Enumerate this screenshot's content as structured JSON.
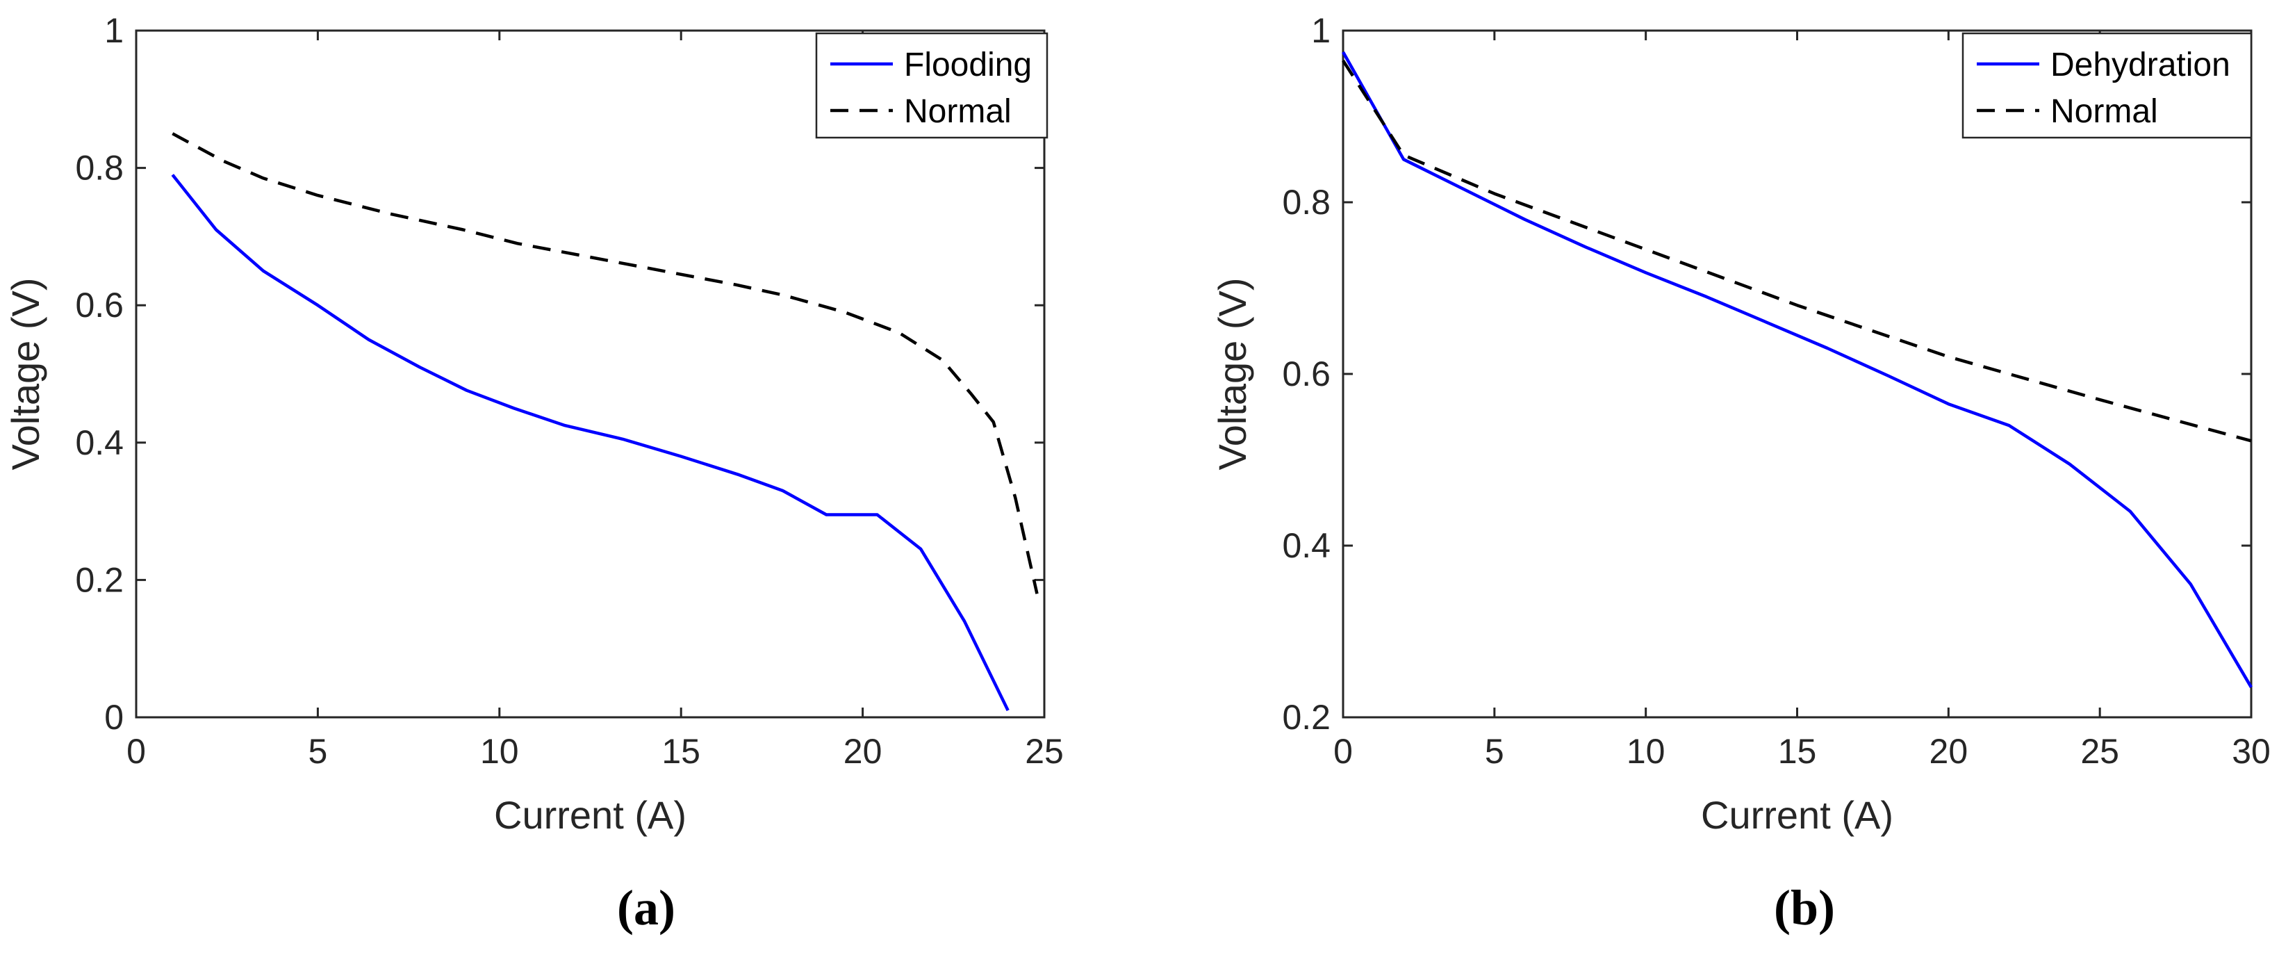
{
  "chart_data": [
    {
      "type": "line",
      "panel_label": "(a)",
      "xlabel": "Current (A)",
      "ylabel": "Voltage (V)",
      "xlim": [
        0,
        25
      ],
      "ylim": [
        0,
        1
      ],
      "xticks": [
        "0",
        "5",
        "10",
        "15",
        "20",
        "25"
      ],
      "yticks": [
        "0",
        "0.2",
        "0.4",
        "0.6",
        "0.8",
        "1"
      ],
      "legend_position": "top-right",
      "series": [
        {
          "name": "Flooding",
          "color": "#0000ff",
          "style": "solid",
          "x": [
            1.0,
            2.2,
            3.5,
            5.0,
            6.4,
            7.8,
            9.1,
            10.4,
            11.8,
            13.4,
            15.0,
            16.6,
            17.8,
            19.0,
            20.4,
            21.6,
            22.8,
            24.0
          ],
          "y": [
            0.79,
            0.71,
            0.65,
            0.6,
            0.55,
            0.51,
            0.476,
            0.45,
            0.425,
            0.405,
            0.38,
            0.353,
            0.33,
            0.295,
            0.295,
            0.245,
            0.14,
            0.01
          ]
        },
        {
          "name": "Normal",
          "color": "#000000",
          "style": "dashed",
          "x": [
            1.0,
            2.4,
            3.5,
            5.0,
            7.0,
            9.0,
            10.5,
            12.5,
            14.5,
            16.5,
            17.8,
            19.5,
            21.0,
            22.2,
            23.0,
            23.6,
            24.2,
            24.8
          ],
          "y": [
            0.85,
            0.81,
            0.785,
            0.76,
            0.733,
            0.71,
            0.69,
            0.67,
            0.65,
            0.63,
            0.615,
            0.59,
            0.56,
            0.52,
            0.47,
            0.43,
            0.32,
            0.18
          ]
        }
      ]
    },
    {
      "type": "line",
      "panel_label": "(b)",
      "xlabel": "Current (A)",
      "ylabel": "Voltage (V)",
      "xlim": [
        0,
        30
      ],
      "ylim": [
        0.2,
        1
      ],
      "xticks": [
        "0",
        "5",
        "10",
        "15",
        "20",
        "25",
        "30"
      ],
      "yticks": [
        "0.2",
        "0.4",
        "0.6",
        "0.8",
        "1"
      ],
      "legend_position": "top-right",
      "series": [
        {
          "name": "Dehydration",
          "color": "#0000ff",
          "style": "solid",
          "x": [
            0,
            2,
            4,
            6,
            8,
            10,
            12,
            14,
            16,
            18,
            20,
            22,
            24,
            26,
            28,
            30
          ],
          "y": [
            0.975,
            0.85,
            0.815,
            0.78,
            0.748,
            0.718,
            0.69,
            0.66,
            0.63,
            0.598,
            0.565,
            0.54,
            0.495,
            0.44,
            0.355,
            0.235
          ]
        },
        {
          "name": "Normal",
          "color": "#000000",
          "style": "dashed",
          "x": [
            0,
            2,
            5,
            10,
            15,
            20,
            25,
            30
          ],
          "y": [
            0.965,
            0.855,
            0.81,
            0.745,
            0.68,
            0.62,
            0.57,
            0.522
          ]
        }
      ]
    }
  ]
}
